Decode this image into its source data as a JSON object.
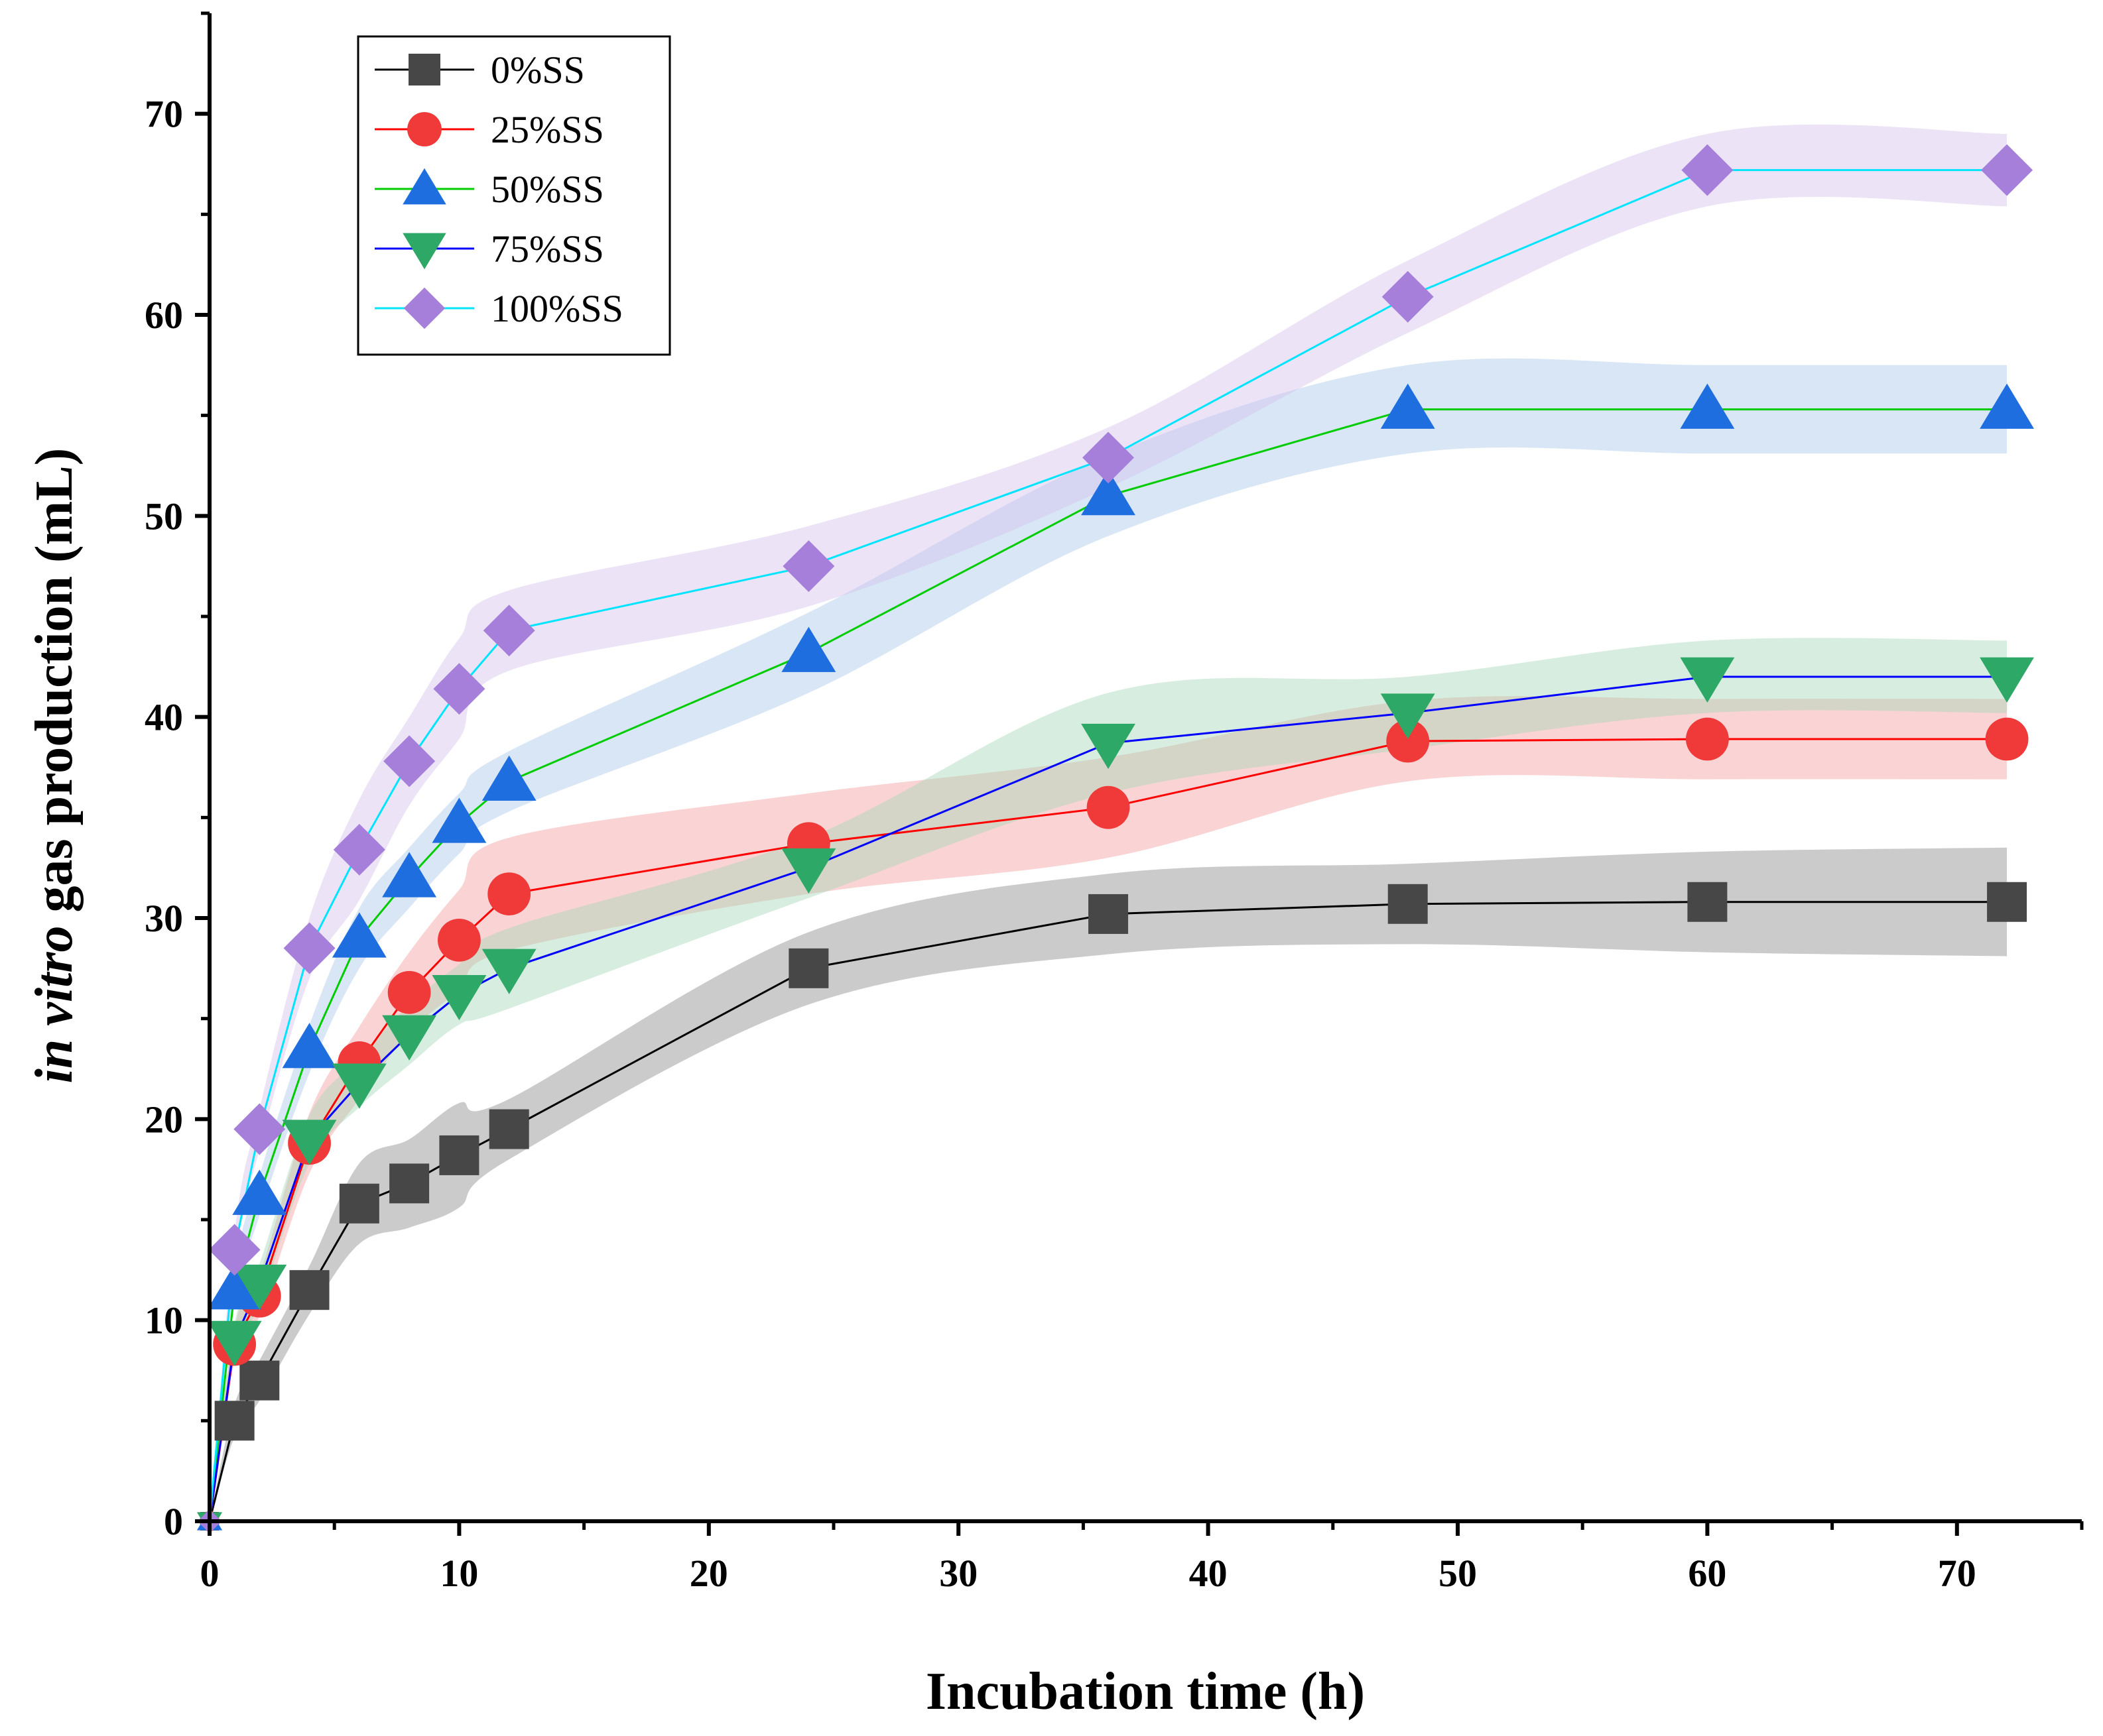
{
  "chart_data": {
    "type": "line",
    "title": "",
    "xlabel": "Incubation time (h)",
    "ylabel_italic": "in vitro",
    "ylabel_rest": " gas production (mL)",
    "xlim": [
      0,
      75
    ],
    "ylim": [
      0,
      75
    ],
    "x_ticks": [
      0,
      10,
      20,
      30,
      40,
      50,
      60,
      70
    ],
    "y_ticks": [
      0,
      10,
      20,
      30,
      40,
      50,
      60,
      70
    ],
    "grid": false,
    "legend_position": "top-left",
    "x": [
      0,
      1,
      2,
      4,
      6,
      8,
      10,
      12,
      24,
      36,
      48,
      60,
      72
    ],
    "series": [
      {
        "name": "0%SS",
        "marker": "square",
        "marker_color": "#474747",
        "line_color": "#000000",
        "band_color": "#8c8c8c",
        "values": [
          0,
          5.0,
          7.0,
          11.5,
          15.8,
          16.8,
          18.2,
          19.5,
          27.5,
          30.2,
          30.7,
          30.8,
          30.8
        ],
        "error": [
          0,
          0.8,
          1.0,
          1.2,
          2.0,
          2.2,
          2.6,
          1.5,
          1.8,
          2.0,
          2.0,
          2.5,
          2.7
        ]
      },
      {
        "name": "25%SS",
        "marker": "circle",
        "marker_color": "#f03a3a",
        "line_color": "#ff0000",
        "band_color": "#f5a0a0",
        "values": [
          0,
          8.8,
          11.2,
          18.8,
          22.8,
          26.3,
          28.9,
          31.2,
          33.7,
          35.5,
          38.8,
          38.9,
          38.9
        ],
        "error": [
          0,
          0.8,
          1.0,
          1.5,
          1.8,
          2.0,
          2.5,
          2.8,
          2.5,
          2.5,
          2.0,
          2.0,
          2.0
        ]
      },
      {
        "name": "50%SS",
        "marker": "triangle-up",
        "marker_color": "#1f6ee0",
        "line_color": "#00cc00",
        "band_color": "#a9c8ec",
        "values": [
          0,
          11.5,
          16.2,
          23.5,
          29.0,
          32.0,
          34.7,
          36.8,
          43.2,
          51.0,
          55.3,
          55.3,
          55.3
        ],
        "error": [
          0,
          0.8,
          1.0,
          1.2,
          1.5,
          1.5,
          1.5,
          1.5,
          2.0,
          2.0,
          2.2,
          2.2,
          2.2
        ]
      },
      {
        "name": "75%SS",
        "marker": "triangle-down",
        "marker_color": "#2ea866",
        "line_color": "#0000ff",
        "band_color": "#a6d6b8",
        "values": [
          0,
          9.0,
          11.8,
          19.0,
          21.8,
          24.2,
          26.2,
          27.5,
          32.5,
          38.7,
          40.2,
          42.0,
          42.0
        ],
        "error": [
          0,
          0.8,
          1.0,
          1.2,
          1.2,
          1.5,
          1.5,
          2.0,
          1.5,
          2.5,
          1.8,
          1.8,
          1.8
        ]
      },
      {
        "name": "100%SS",
        "marker": "diamond",
        "marker_color": "#a57fd9",
        "line_color": "#00e5ff",
        "band_color": "#d4c2ee",
        "values": [
          0,
          13.5,
          19.5,
          28.5,
          33.4,
          37.8,
          41.4,
          44.3,
          47.5,
          52.9,
          60.9,
          67.2,
          67.2
        ],
        "error": [
          0,
          0.8,
          1.0,
          1.5,
          2.5,
          2.2,
          2.5,
          2.0,
          2.0,
          1.5,
          1.8,
          1.8,
          1.8
        ]
      }
    ]
  }
}
